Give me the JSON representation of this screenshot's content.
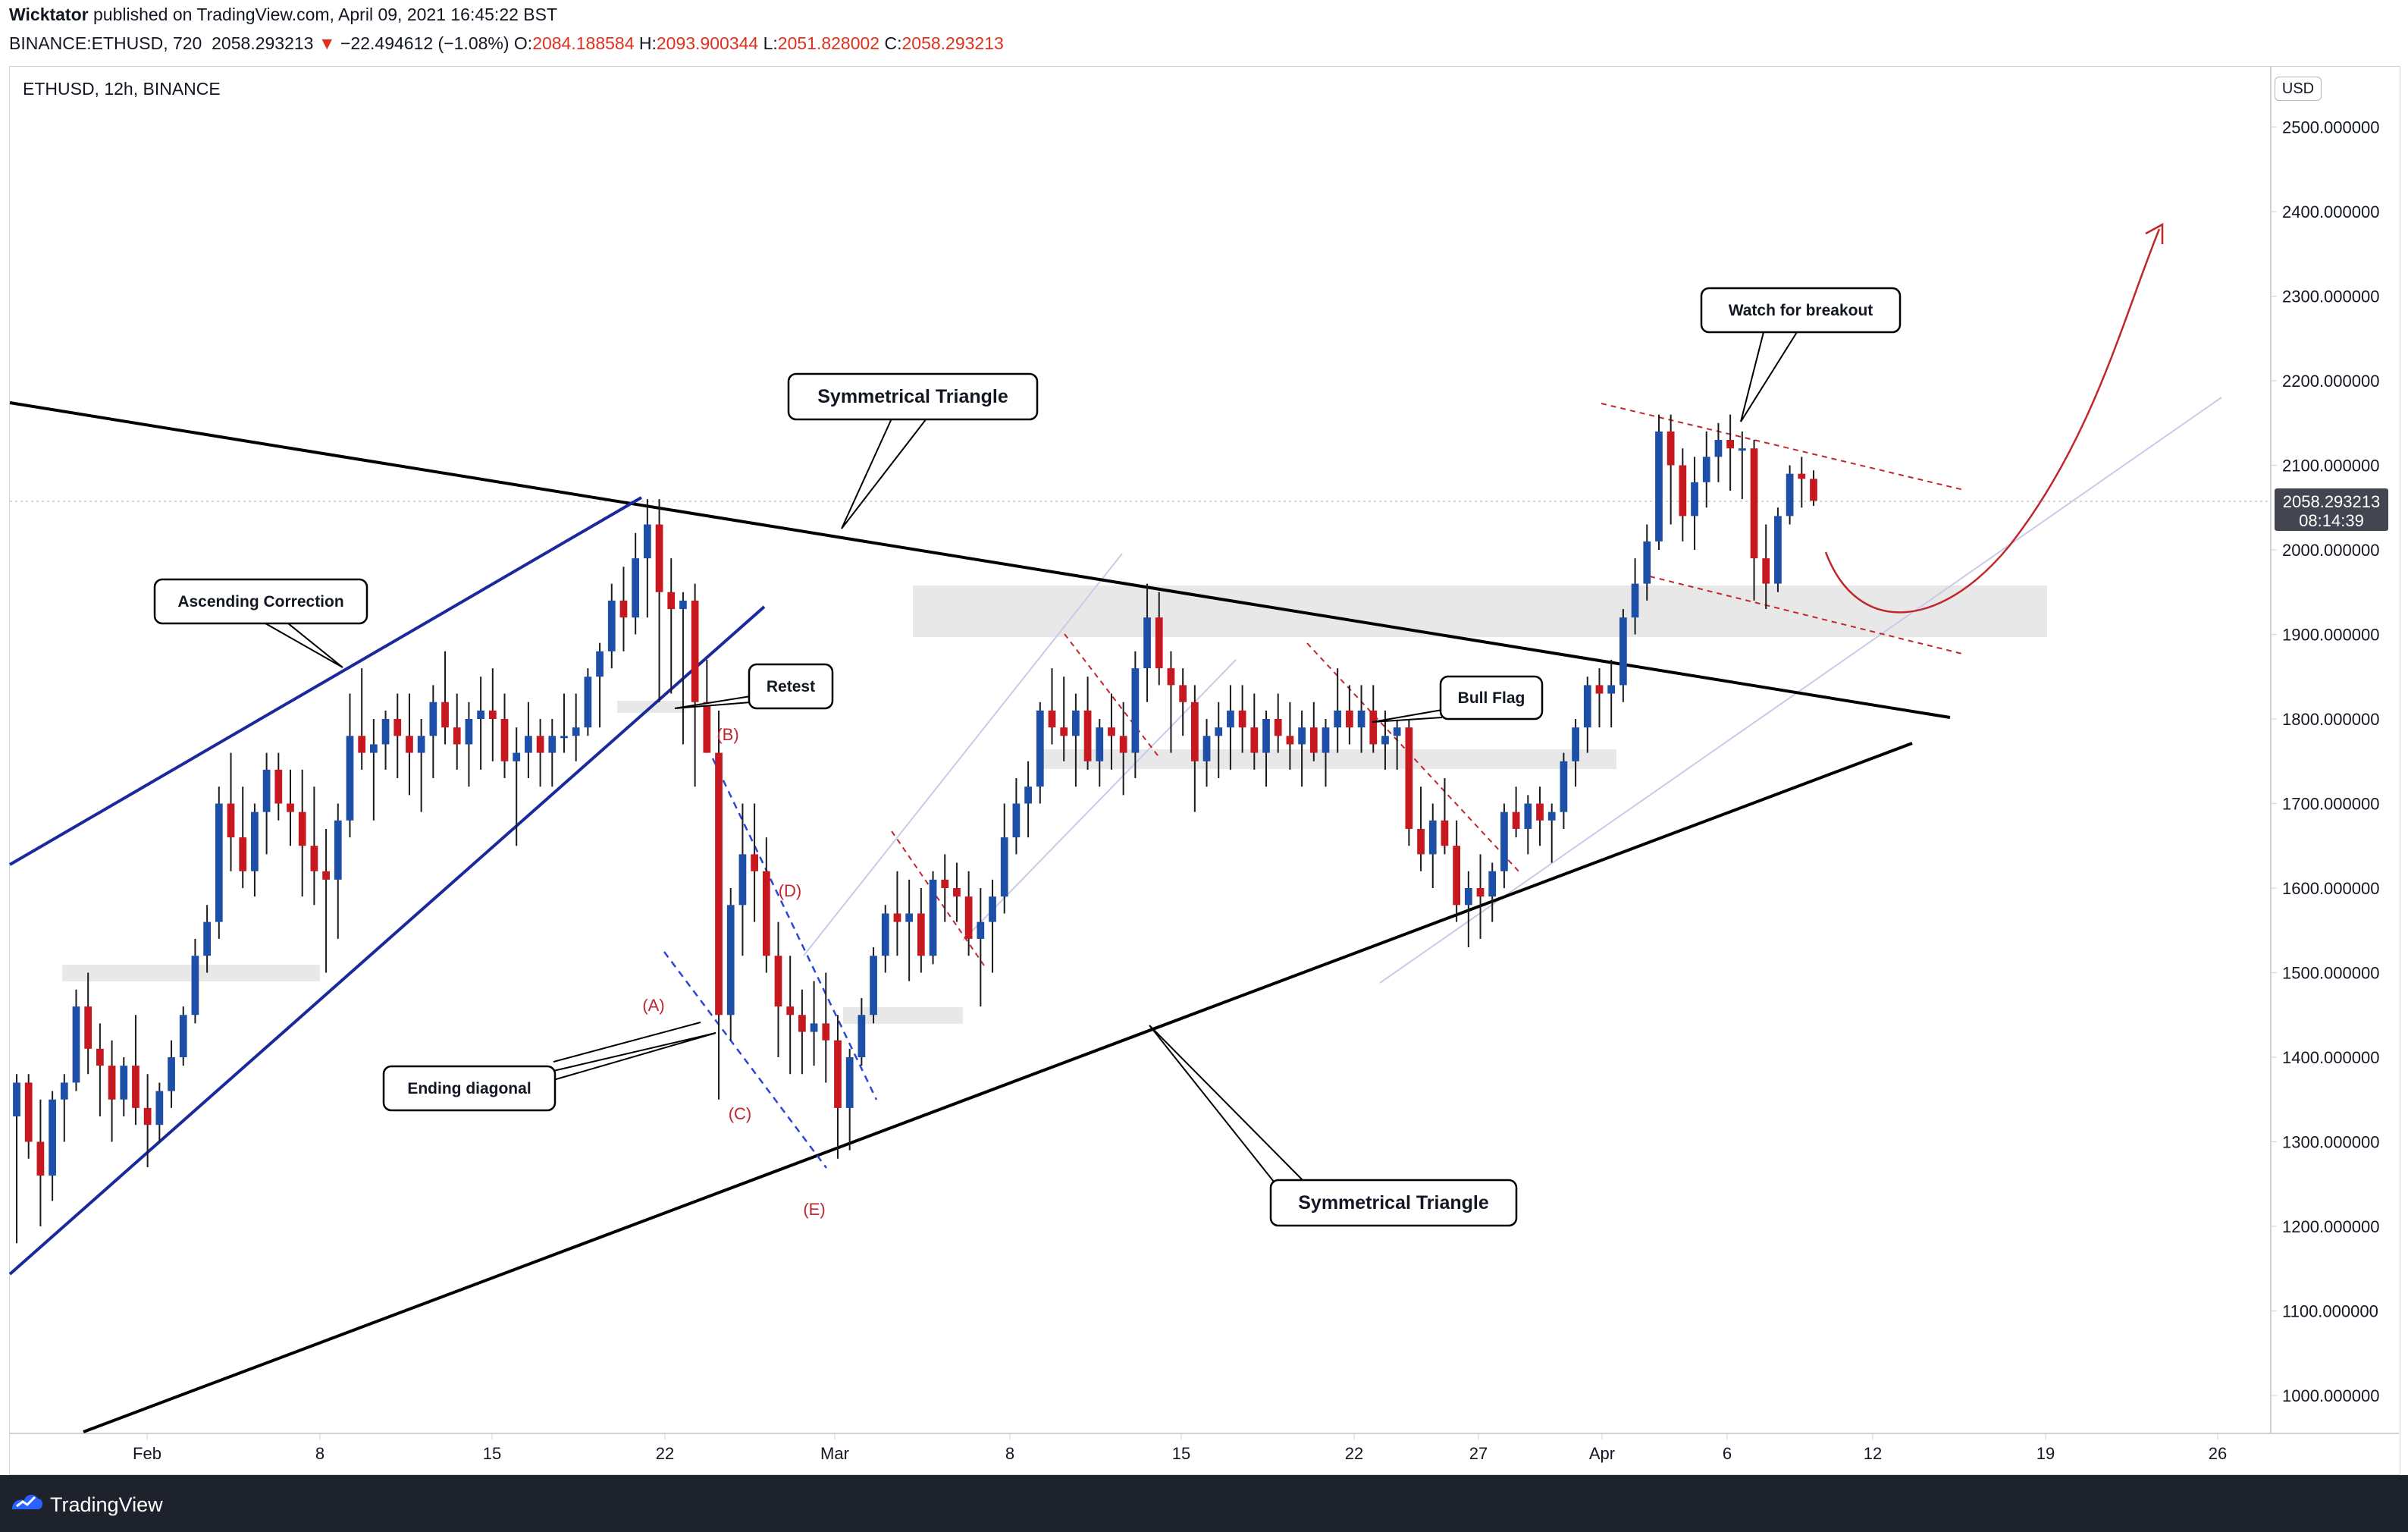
{
  "header": {
    "author": "Wicktator",
    "published_text": "published on TradingView.com, April 09, 2021 16:45:22 BST",
    "symbol_info": "BINANCE:ETHUSD, 720",
    "last_price": "2058.293213",
    "change": "−22.494612 (−1.08%)",
    "o_label": "O:",
    "o_value": "2084.188584",
    "h_label": "H:",
    "h_value": "2093.900344",
    "l_label": "L:",
    "l_value": "2051.828002",
    "c_label": "C:",
    "c_value": "2058.293213"
  },
  "chart_title": "ETHUSD, 12h, BINANCE",
  "currency": "USD",
  "price_tag": {
    "price": "2058.293213",
    "countdown": "08:14:39"
  },
  "colors": {
    "up": "#1e4fa8",
    "down": "#c7171f",
    "accent_red": "#c0272d",
    "navy": "#1a2a9c",
    "zone": "#e6e6e6"
  },
  "footer": {
    "brand": "TradingView"
  },
  "annotations": {
    "sym_triangle_top": "Symmetrical Triangle",
    "sym_triangle_bottom": "Symmetrical Triangle",
    "ascending_correction": "Ascending Correction",
    "retest": "Retest",
    "ending_diagonal": "Ending diagonal",
    "bull_flag": "Bull Flag",
    "watch_breakout": "Watch for breakout",
    "waves": [
      "(A)",
      "(B)",
      "(C)",
      "(D)",
      "(E)"
    ]
  },
  "chart_data": {
    "type": "candlestick",
    "title": "ETHUSD, 12h, BINANCE",
    "interval": "12h",
    "y_axis": {
      "range": [
        950,
        2550
      ],
      "ticks": [
        "2500.000000",
        "2400.000000",
        "2300.000000",
        "2200.000000",
        "2100.000000",
        "2000.000000",
        "1900.000000",
        "1800.000000",
        "1700.000000",
        "1600.000000",
        "1500.000000",
        "1400.000000",
        "1300.000000",
        "1200.000000",
        "1100.000000",
        "1000.000000"
      ]
    },
    "x_axis": {
      "ticks": [
        "Feb",
        "8",
        "15",
        "22",
        "Mar",
        "8",
        "15",
        "22",
        "27",
        "Apr",
        "6",
        "12",
        "19",
        "26"
      ]
    },
    "candles": [
      [
        1330,
        1380,
        1180,
        1370
      ],
      [
        1370,
        1380,
        1280,
        1300
      ],
      [
        1300,
        1350,
        1200,
        1260
      ],
      [
        1260,
        1360,
        1230,
        1350
      ],
      [
        1350,
        1380,
        1300,
        1370
      ],
      [
        1370,
        1480,
        1360,
        1460
      ],
      [
        1460,
        1500,
        1380,
        1410
      ],
      [
        1410,
        1440,
        1330,
        1390
      ],
      [
        1390,
        1420,
        1300,
        1350
      ],
      [
        1350,
        1400,
        1330,
        1390
      ],
      [
        1390,
        1450,
        1320,
        1340
      ],
      [
        1340,
        1380,
        1270,
        1320
      ],
      [
        1320,
        1370,
        1300,
        1360
      ],
      [
        1360,
        1420,
        1340,
        1400
      ],
      [
        1400,
        1460,
        1390,
        1450
      ],
      [
        1450,
        1540,
        1440,
        1520
      ],
      [
        1520,
        1580,
        1500,
        1560
      ],
      [
        1560,
        1720,
        1540,
        1700
      ],
      [
        1700,
        1760,
        1620,
        1660
      ],
      [
        1660,
        1720,
        1600,
        1620
      ],
      [
        1620,
        1700,
        1590,
        1690
      ],
      [
        1690,
        1760,
        1640,
        1740
      ],
      [
        1740,
        1760,
        1680,
        1700
      ],
      [
        1700,
        1740,
        1650,
        1690
      ],
      [
        1690,
        1740,
        1590,
        1650
      ],
      [
        1650,
        1720,
        1580,
        1620
      ],
      [
        1620,
        1670,
        1500,
        1610
      ],
      [
        1610,
        1700,
        1540,
        1680
      ],
      [
        1680,
        1830,
        1660,
        1780
      ],
      [
        1780,
        1860,
        1740,
        1760
      ],
      [
        1760,
        1800,
        1680,
        1770
      ],
      [
        1770,
        1810,
        1740,
        1800
      ],
      [
        1800,
        1830,
        1730,
        1780
      ],
      [
        1780,
        1830,
        1710,
        1760
      ],
      [
        1760,
        1800,
        1690,
        1780
      ],
      [
        1780,
        1840,
        1730,
        1820
      ],
      [
        1820,
        1880,
        1770,
        1790
      ],
      [
        1790,
        1830,
        1740,
        1770
      ],
      [
        1770,
        1820,
        1720,
        1800
      ],
      [
        1800,
        1850,
        1740,
        1810
      ],
      [
        1810,
        1860,
        1750,
        1800
      ],
      [
        1800,
        1830,
        1730,
        1750
      ],
      [
        1750,
        1790,
        1650,
        1760
      ],
      [
        1760,
        1820,
        1730,
        1780
      ],
      [
        1780,
        1800,
        1720,
        1760
      ],
      [
        1760,
        1800,
        1720,
        1780
      ],
      [
        1780,
        1830,
        1760,
        1780
      ],
      [
        1780,
        1830,
        1750,
        1790
      ],
      [
        1790,
        1860,
        1780,
        1850
      ],
      [
        1850,
        1890,
        1790,
        1880
      ],
      [
        1880,
        1960,
        1860,
        1940
      ],
      [
        1940,
        1980,
        1880,
        1920
      ],
      [
        1920,
        2020,
        1900,
        1990
      ],
      [
        1990,
        2060,
        1920,
        2030
      ],
      [
        2030,
        2060,
        1820,
        1950
      ],
      [
        1950,
        1990,
        1830,
        1930
      ],
      [
        1930,
        1950,
        1770,
        1940
      ],
      [
        1940,
        1960,
        1720,
        1820
      ],
      [
        1820,
        1870,
        1760,
        1760
      ],
      [
        1760,
        1810,
        1350,
        1450
      ],
      [
        1450,
        1600,
        1420,
        1580
      ],
      [
        1580,
        1700,
        1520,
        1640
      ],
      [
        1640,
        1700,
        1560,
        1620
      ],
      [
        1620,
        1660,
        1500,
        1520
      ],
      [
        1520,
        1560,
        1400,
        1460
      ],
      [
        1460,
        1520,
        1380,
        1450
      ],
      [
        1450,
        1480,
        1380,
        1430
      ],
      [
        1430,
        1490,
        1390,
        1440
      ],
      [
        1440,
        1500,
        1370,
        1420
      ],
      [
        1420,
        1450,
        1280,
        1340
      ],
      [
        1340,
        1410,
        1290,
        1400
      ],
      [
        1400,
        1470,
        1390,
        1450
      ],
      [
        1450,
        1530,
        1440,
        1520
      ],
      [
        1520,
        1580,
        1500,
        1570
      ],
      [
        1570,
        1620,
        1520,
        1560
      ],
      [
        1560,
        1610,
        1490,
        1570
      ],
      [
        1570,
        1600,
        1500,
        1520
      ],
      [
        1520,
        1620,
        1510,
        1610
      ],
      [
        1610,
        1640,
        1560,
        1600
      ],
      [
        1600,
        1630,
        1560,
        1590
      ],
      [
        1590,
        1620,
        1520,
        1540
      ],
      [
        1540,
        1600,
        1460,
        1560
      ],
      [
        1560,
        1610,
        1500,
        1590
      ],
      [
        1590,
        1700,
        1570,
        1660
      ],
      [
        1660,
        1730,
        1640,
        1700
      ],
      [
        1700,
        1750,
        1660,
        1720
      ],
      [
        1720,
        1820,
        1700,
        1810
      ],
      [
        1810,
        1860,
        1770,
        1790
      ],
      [
        1790,
        1850,
        1750,
        1780
      ],
      [
        1780,
        1830,
        1720,
        1810
      ],
      [
        1810,
        1850,
        1740,
        1750
      ],
      [
        1750,
        1800,
        1720,
        1790
      ],
      [
        1790,
        1830,
        1740,
        1780
      ],
      [
        1780,
        1820,
        1710,
        1760
      ],
      [
        1760,
        1880,
        1730,
        1860
      ],
      [
        1860,
        1960,
        1820,
        1920
      ],
      [
        1920,
        1950,
        1840,
        1860
      ],
      [
        1860,
        1880,
        1760,
        1840
      ],
      [
        1840,
        1860,
        1780,
        1820
      ],
      [
        1820,
        1840,
        1690,
        1750
      ],
      [
        1750,
        1800,
        1720,
        1780
      ],
      [
        1780,
        1820,
        1730,
        1790
      ],
      [
        1790,
        1840,
        1740,
        1810
      ],
      [
        1810,
        1840,
        1760,
        1790
      ],
      [
        1790,
        1830,
        1740,
        1760
      ],
      [
        1760,
        1810,
        1720,
        1800
      ],
      [
        1800,
        1830,
        1760,
        1780
      ],
      [
        1780,
        1820,
        1740,
        1770
      ],
      [
        1770,
        1810,
        1720,
        1790
      ],
      [
        1790,
        1820,
        1750,
        1760
      ],
      [
        1760,
        1800,
        1720,
        1790
      ],
      [
        1790,
        1860,
        1760,
        1810
      ],
      [
        1810,
        1840,
        1770,
        1790
      ],
      [
        1790,
        1840,
        1760,
        1810
      ],
      [
        1810,
        1840,
        1760,
        1770
      ],
      [
        1770,
        1810,
        1740,
        1780
      ],
      [
        1780,
        1800,
        1740,
        1790
      ],
      [
        1790,
        1800,
        1650,
        1670
      ],
      [
        1670,
        1720,
        1620,
        1640
      ],
      [
        1640,
        1700,
        1600,
        1680
      ],
      [
        1680,
        1730,
        1640,
        1650
      ],
      [
        1650,
        1680,
        1560,
        1580
      ],
      [
        1580,
        1620,
        1530,
        1600
      ],
      [
        1600,
        1640,
        1540,
        1590
      ],
      [
        1590,
        1630,
        1560,
        1620
      ],
      [
        1620,
        1700,
        1600,
        1690
      ],
      [
        1690,
        1720,
        1660,
        1670
      ],
      [
        1670,
        1710,
        1640,
        1700
      ],
      [
        1700,
        1720,
        1650,
        1680
      ],
      [
        1680,
        1700,
        1630,
        1690
      ],
      [
        1690,
        1760,
        1670,
        1750
      ],
      [
        1750,
        1800,
        1720,
        1790
      ],
      [
        1790,
        1850,
        1760,
        1840
      ],
      [
        1840,
        1860,
        1790,
        1830
      ],
      [
        1830,
        1870,
        1790,
        1840
      ],
      [
        1840,
        1930,
        1820,
        1920
      ],
      [
        1920,
        1990,
        1900,
        1960
      ],
      [
        1960,
        2030,
        1940,
        2010
      ],
      [
        2010,
        2160,
        2000,
        2140
      ],
      [
        2140,
        2160,
        2030,
        2100
      ],
      [
        2100,
        2120,
        2010,
        2040
      ],
      [
        2040,
        2110,
        2000,
        2080
      ],
      [
        2080,
        2140,
        2050,
        2110
      ],
      [
        2110,
        2150,
        2080,
        2130
      ],
      [
        2130,
        2160,
        2070,
        2120
      ],
      [
        2120,
        2140,
        2060,
        2120
      ],
      [
        2120,
        2130,
        1940,
        1990
      ],
      [
        1990,
        2030,
        1930,
        1960
      ],
      [
        1960,
        2050,
        1950,
        2040
      ],
      [
        2040,
        2100,
        2030,
        2090
      ],
      [
        2090,
        2110,
        2050,
        2084
      ],
      [
        2084,
        2094,
        2052,
        2058
      ]
    ],
    "sequence_note": "Candles are [open, high, low, close] in USD, ordered oldest to newest, from late Jan to Apr 9, 2021.",
    "last_close": 2058.293213
  }
}
